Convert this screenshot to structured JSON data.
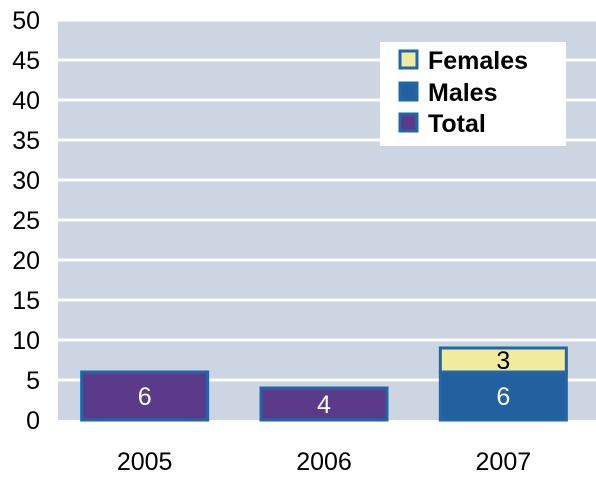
{
  "chart_data": {
    "type": "bar",
    "categories": [
      "2005",
      "2006",
      "2007"
    ],
    "series": [
      {
        "name": "Total",
        "values": [
          6,
          4,
          null
        ],
        "color": "#5B3A8A"
      },
      {
        "name": "Males",
        "values": [
          null,
          null,
          6
        ],
        "color": "#2360A0"
      },
      {
        "name": "Females",
        "values": [
          null,
          null,
          3
        ],
        "color": "#F0EB9E"
      }
    ],
    "stacked": true,
    "ylim": [
      0,
      50
    ],
    "yticks": [
      "0",
      "5",
      "10",
      "15",
      "20",
      "25",
      "30",
      "35",
      "40",
      "45",
      "50"
    ],
    "grid": true,
    "legend_position": "top-right",
    "legend": [
      "Females",
      "Males",
      "Total"
    ],
    "plot_background": "#CDD5E2",
    "bar_border_color": "#1F67A8",
    "data_labels": [
      {
        "category": "2005",
        "series": "Total",
        "text": "6",
        "color": "#ffffff"
      },
      {
        "category": "2006",
        "series": "Total",
        "text": "4",
        "color": "#ffffff"
      },
      {
        "category": "2007",
        "series": "Males",
        "text": "6",
        "color": "#ffffff"
      },
      {
        "category": "2007",
        "series": "Females",
        "text": "3",
        "color": "#000000"
      }
    ]
  }
}
